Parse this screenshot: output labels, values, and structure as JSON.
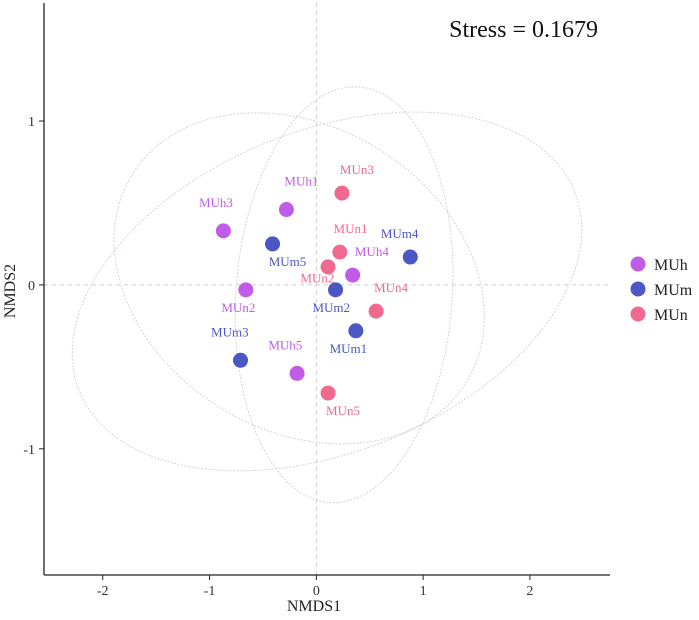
{
  "chart_data": {
    "type": "scatter",
    "title": "",
    "annotation": "Stress = 0.1679",
    "xlabel": "NMDS1",
    "ylabel": "NMDS2",
    "xlim": [
      -2.55,
      2.75
    ],
    "ylim": [
      -1.77,
      1.72
    ],
    "xticks": [
      -2,
      -1,
      0,
      1,
      2
    ],
    "yticks": [
      -1,
      0,
      1
    ],
    "xtick_labels": [
      "-2",
      "-1",
      "0",
      "1",
      "2"
    ],
    "ytick_labels": [
      "-1",
      "0",
      "1"
    ],
    "grid": false,
    "reference_lines": {
      "x": 0,
      "y": 0
    },
    "legend": {
      "position": "right",
      "entries": [
        "MUh",
        "MUm",
        "MUn"
      ]
    },
    "colors": {
      "MUh": "#c05ce8",
      "MUm": "#4b57c3",
      "MUn": "#f0698e",
      "ellipse": "#d9d0d6",
      "refline": "#cccccc"
    },
    "series": [
      {
        "name": "MUh",
        "points": [
          {
            "label": "MUh1",
            "x": -0.28,
            "y": 0.46,
            "label_dx": 0.14,
            "label_dy": 0.17
          },
          {
            "label": "MUh3",
            "x": -0.87,
            "y": 0.33,
            "label_dx": -0.07,
            "label_dy": 0.17
          },
          {
            "label": "MUh4",
            "x": 0.34,
            "y": 0.06,
            "label_dx": 0.18,
            "label_dy": 0.14
          },
          {
            "label": "MUh5",
            "x": -0.18,
            "y": -0.54,
            "label_dx": -0.11,
            "label_dy": 0.17
          },
          {
            "label": "MUn2",
            "x": -0.66,
            "y": -0.03,
            "label_dx": -0.07,
            "label_dy": -0.11
          }
        ]
      },
      {
        "name": "MUm",
        "points": [
          {
            "label": "MUm1",
            "x": 0.37,
            "y": -0.28,
            "label_dx": -0.07,
            "label_dy": -0.11
          },
          {
            "label": "MUm2",
            "x": 0.18,
            "y": -0.03,
            "label_dx": -0.04,
            "label_dy": -0.11
          },
          {
            "label": "MUm3",
            "x": -0.71,
            "y": -0.46,
            "label_dx": -0.1,
            "label_dy": 0.17
          },
          {
            "label": "MUm4",
            "x": 0.88,
            "y": 0.17,
            "label_dx": -0.1,
            "label_dy": 0.14
          },
          {
            "label": "MUm5",
            "x": -0.41,
            "y": 0.25,
            "label_dx": 0.14,
            "label_dy": -0.11
          }
        ]
      },
      {
        "name": "MUn",
        "points": [
          {
            "label": "MUn1",
            "x": 0.22,
            "y": 0.2,
            "label_dx": 0.1,
            "label_dy": 0.14
          },
          {
            "label": "MUn2",
            "x": 0.11,
            "y": 0.11,
            "label_dx": -0.1,
            "label_dy": -0.07
          },
          {
            "label": "MUn3",
            "x": 0.24,
            "y": 0.56,
            "label_dx": 0.14,
            "label_dy": 0.14
          },
          {
            "label": "MUn4",
            "x": 0.56,
            "y": -0.16,
            "label_dx": 0.14,
            "label_dy": 0.14
          },
          {
            "label": "MUn5",
            "x": 0.11,
            "y": -0.66,
            "label_dx": 0.14,
            "label_dy": -0.11
          }
        ]
      }
    ],
    "ellipses": [
      {
        "group": "MUh",
        "cx": -0.16,
        "cy": 0.04,
        "rx": 1.42,
        "ry": 1.2,
        "angle": 58
      },
      {
        "group": "MUm",
        "cx": 0.1,
        "cy": -0.04,
        "rx": 2.5,
        "ry": 0.98,
        "angle": 22
      },
      {
        "group": "MUn",
        "cx": 0.26,
        "cy": -0.06,
        "rx": 1.95,
        "ry": 0.66,
        "angle": 86
      }
    ]
  }
}
